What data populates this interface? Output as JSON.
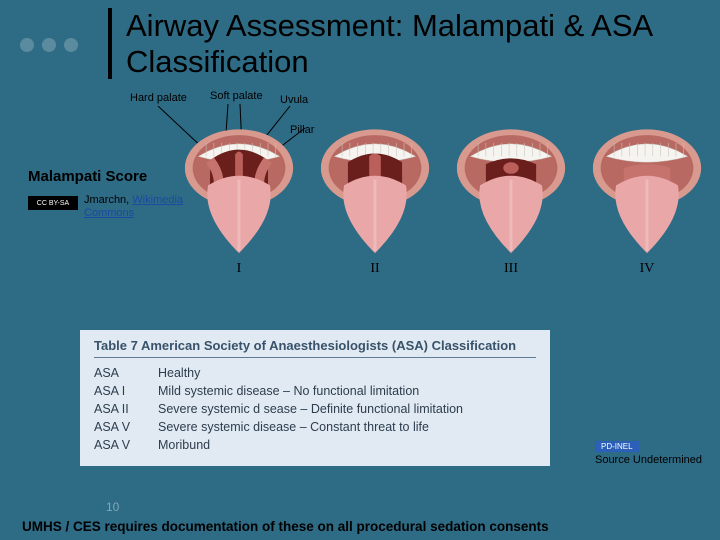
{
  "title": "Airway Assessment: Malampati & ASA Classification",
  "anatomy": {
    "hard_palate": "Hard palate",
    "soft_palate": "Soft palate",
    "uvula": "Uvula",
    "pillar": "Pillar"
  },
  "malampati": {
    "heading": "Malampati Score",
    "cc_badge": "CC BY-SA",
    "attr_author": "Jmarchn, ",
    "attr_link1": "Wikimedia",
    "attr_link2": "Commons",
    "classes": [
      "I",
      "II",
      "III",
      "IV"
    ]
  },
  "mouth_style": {
    "lip_outer": "#d89a8e",
    "lip_inner": "#b86a62",
    "teeth": "#f6f4f0",
    "teeth_line": "#c9c2b8",
    "tongue": "#e9a7a8",
    "tongue_hi": "#f1c4c4",
    "throat_dark": "#6a1f1c",
    "palate": "#c6736e",
    "uvula": "#ba5f5a"
  },
  "asa": {
    "title": "Table 7 American Society of Anaesthesiologists (ASA) Classification",
    "rows": [
      {
        "code": "ASA",
        "desc": "Healthy"
      },
      {
        "code": "ASA I",
        "desc": "Mild systemic disease – No functional limitation"
      },
      {
        "code": "ASA II",
        "desc": "Severe systemic d sease – Definite functional limitation"
      },
      {
        "code": "ASA V",
        "desc": "Severe systemic disease – Constant threat to life"
      },
      {
        "code": "ASA V",
        "desc": "Moribund"
      }
    ],
    "source_badge": "PD-INEL",
    "source_text": "Source Undetermined"
  },
  "slide_number": "10",
  "footer": "UMHS / CES requires documentation of these on all procedural sedation consents"
}
